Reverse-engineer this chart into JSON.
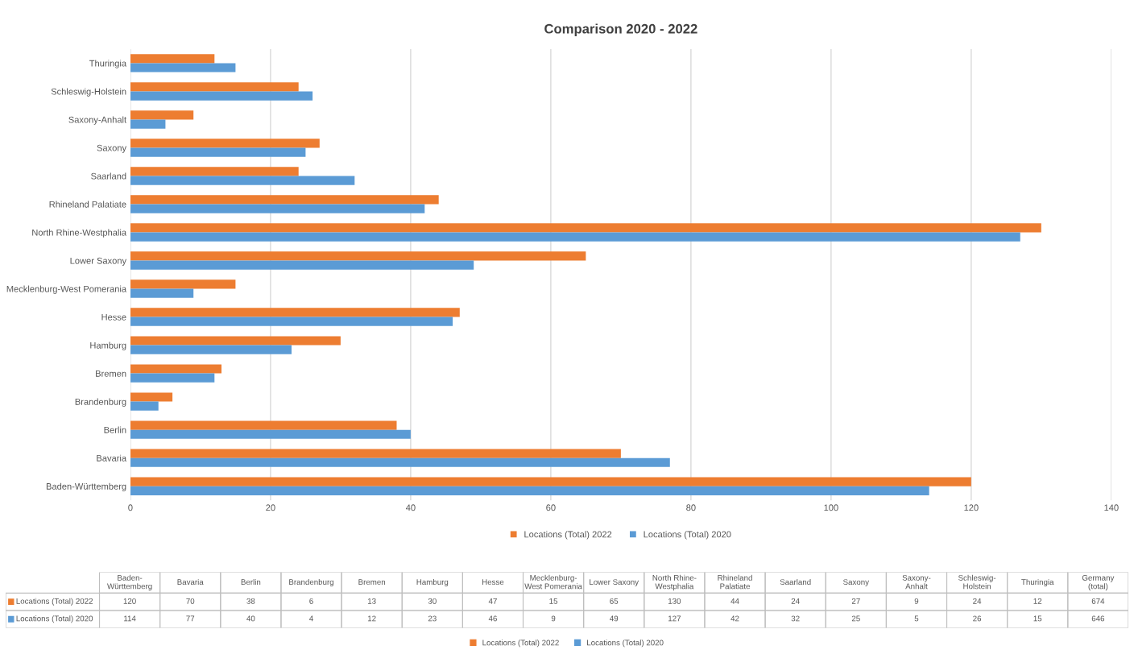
{
  "chart_data": [
    {
      "type": "bar",
      "orientation": "horizontal",
      "title": "Comparison 2020 - 2022",
      "categories": [
        "Thuringia",
        "Schleswig-Holstein",
        "Saxony-Anhalt",
        "Saxony",
        "Saarland",
        "Rhineland Palatiate",
        "North Rhine-Westphalia",
        "Lower Saxony",
        "Mecklenburg-West Pomerania",
        "Hesse",
        "Hamburg",
        "Bremen",
        "Brandenburg",
        "Berlin",
        "Bavaria",
        "Baden-Württemberg"
      ],
      "series": [
        {
          "name": "Locations (Total) 2022",
          "color": "#ed7d31",
          "values": [
            12,
            24,
            9,
            27,
            24,
            44,
            130,
            65,
            15,
            47,
            30,
            13,
            6,
            38,
            70,
            120
          ]
        },
        {
          "name": "Locations (Total) 2020",
          "color": "#5b9bd5",
          "values": [
            15,
            26,
            5,
            25,
            32,
            42,
            127,
            49,
            9,
            46,
            23,
            12,
            4,
            40,
            77,
            114
          ]
        }
      ],
      "xlim": [
        0,
        140
      ],
      "xticks": [
        0,
        20,
        40,
        60,
        80,
        100,
        120,
        140
      ],
      "grid": "x",
      "legend": "bottom"
    },
    {
      "type": "other",
      "categories": [
        "Baden-Württemberg",
        "Bavaria",
        "Berlin",
        "Brandenburg",
        "Bremen",
        "Hamburg",
        "Hesse",
        "Mecklenburg-West Pomerania",
        "Lower Saxony",
        "North Rhine-Westphalia",
        "Rhineland Palatiate",
        "Saarland",
        "Saxony",
        "Saxony-Anhalt",
        "Schleswig-Holstein",
        "Thuringia",
        "Germany (total)"
      ],
      "series": [
        {
          "name": "Locations (Total) 2022",
          "color": "#ed7d31",
          "values": [
            120,
            70,
            38,
            6,
            13,
            30,
            47,
            15,
            65,
            130,
            44,
            24,
            27,
            9,
            24,
            12,
            674
          ]
        },
        {
          "name": "Locations (Total) 2020",
          "color": "#5b9bd5",
          "values": [
            114,
            77,
            40,
            4,
            12,
            23,
            46,
            9,
            49,
            127,
            42,
            32,
            25,
            5,
            26,
            15,
            646
          ]
        }
      ],
      "data_labels": true,
      "legend": "bottom"
    }
  ]
}
